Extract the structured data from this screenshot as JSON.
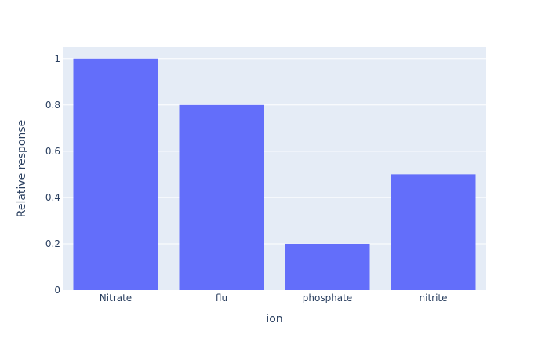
{
  "chart_data": {
    "type": "bar",
    "title": "",
    "xlabel": "ion",
    "ylabel": "Relative response",
    "categories": [
      "Nitrate",
      "flu",
      "phosphate",
      "nitrite"
    ],
    "values": [
      1.0,
      0.8,
      0.2,
      0.5
    ],
    "ylim": [
      0,
      1.05
    ],
    "yticks": [
      0,
      0.2,
      0.4,
      0.6,
      0.8,
      1
    ],
    "ytick_labels": [
      "0",
      "0.2",
      "0.4",
      "0.6",
      "0.8",
      "1"
    ],
    "grid": true,
    "legend": "none",
    "colors": {
      "bar": "#636efa",
      "plot_bg": "#e5ecf6",
      "grid": "#ffffff",
      "text": "#2a3f5f"
    }
  }
}
